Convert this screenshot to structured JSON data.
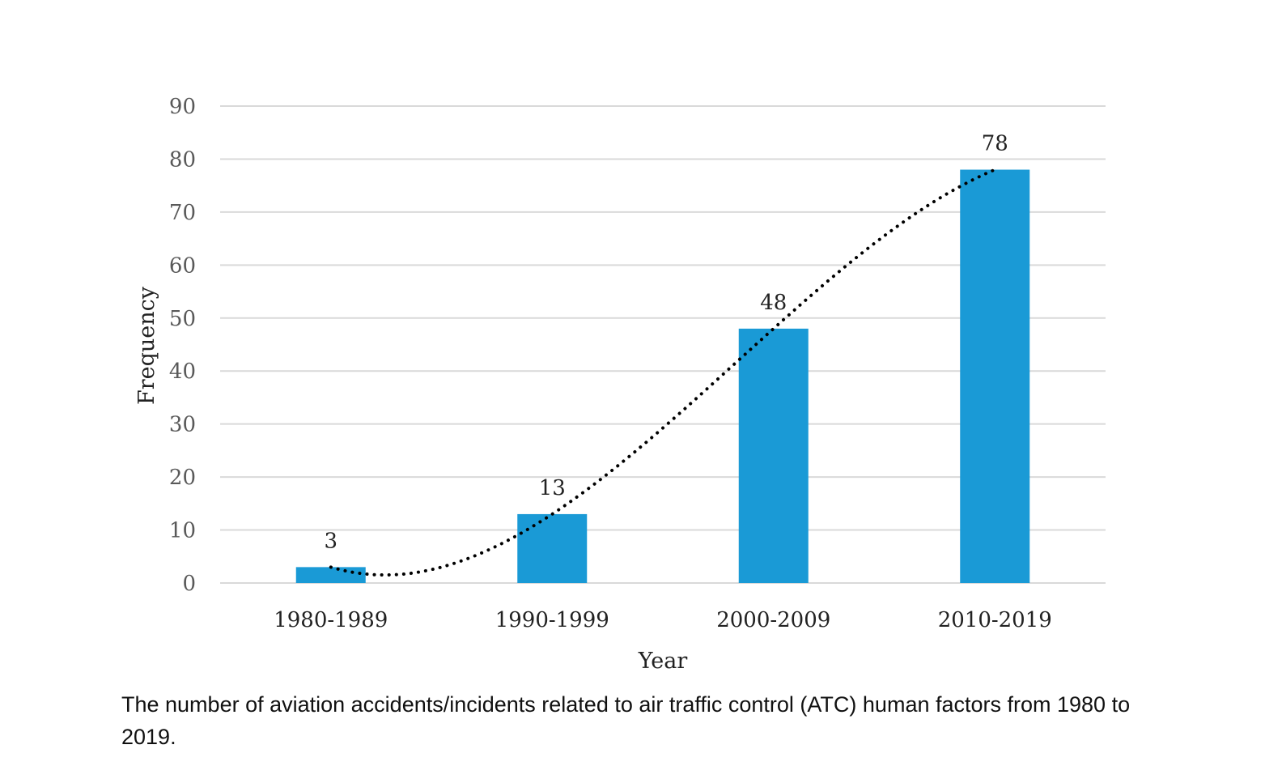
{
  "chart_data": {
    "type": "bar",
    "categories": [
      "1980-1989",
      "1990-1999",
      "2000-2009",
      "2010-2019"
    ],
    "values": [
      3,
      13,
      48,
      78
    ],
    "data_labels": [
      "3",
      "13",
      "48",
      "78"
    ],
    "xlabel": "Year",
    "ylabel": "Frequency",
    "ylim": [
      0,
      90
    ],
    "yticks": [
      0,
      10,
      20,
      30,
      40,
      50,
      60,
      70,
      80,
      90
    ],
    "grid": true,
    "legend": "none",
    "trendline": "polynomial",
    "bar_color": "#1a9ad6",
    "gridline_color": "#d9d9d9",
    "trendline_color": "#000000"
  },
  "caption": "The number of aviation accidents/incidents related to air traffic control (ATC) human factors from 1980 to 2019."
}
